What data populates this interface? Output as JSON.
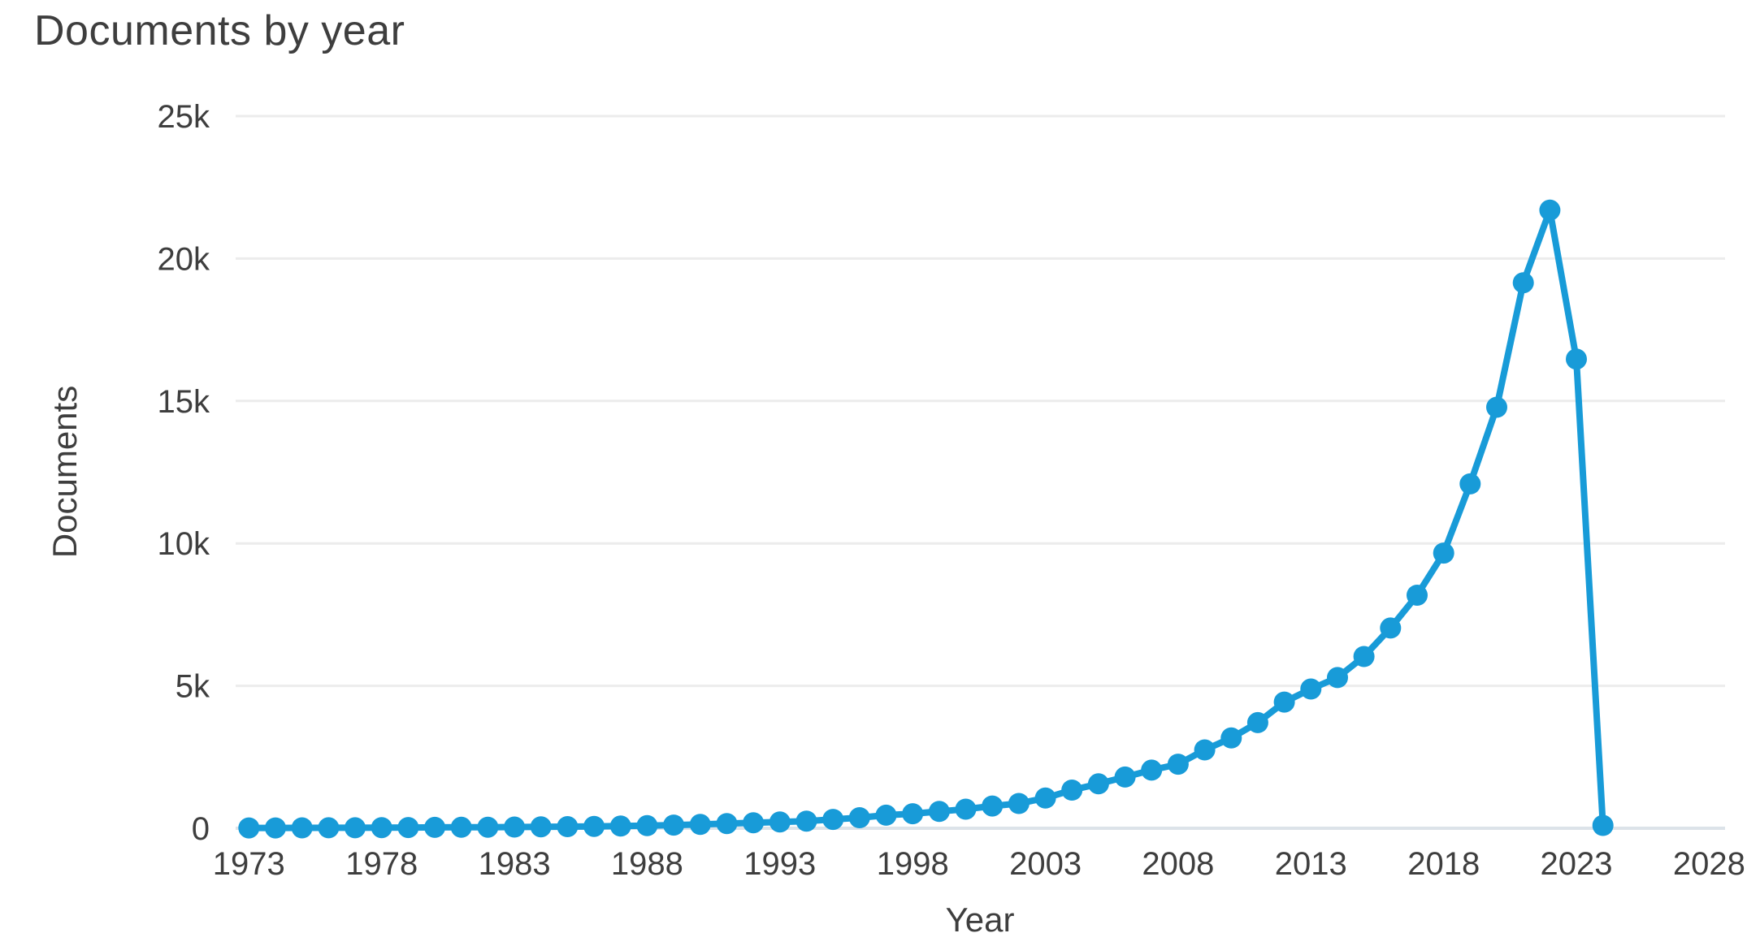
{
  "page": {
    "background": "#ffffff"
  },
  "chart_data": {
    "type": "line",
    "title": "Documents by year",
    "xlabel": "Year",
    "ylabel": "Documents",
    "xlim": [
      1972.5,
      2028.6
    ],
    "ylim": [
      0,
      25000
    ],
    "grid": "horizontal",
    "legend": "none",
    "x_ticks": {
      "values": [
        1973,
        1978,
        1983,
        1988,
        1993,
        1998,
        2003,
        2008,
        2013,
        2018,
        2023,
        2028
      ],
      "labels": [
        "1973",
        "1978",
        "1983",
        "1988",
        "1993",
        "1998",
        "2003",
        "2008",
        "2013",
        "2018",
        "2023",
        "2028"
      ]
    },
    "y_ticks": {
      "values": [
        0,
        5000,
        10000,
        15000,
        20000,
        25000
      ],
      "labels": [
        "0",
        "5k",
        "10k",
        "15k",
        "20k",
        "25k"
      ]
    },
    "series": [
      {
        "name": "Documents",
        "color": "#189bd8",
        "x": [
          1973,
          1974,
          1975,
          1976,
          1977,
          1978,
          1979,
          1980,
          1981,
          1982,
          1983,
          1984,
          1985,
          1986,
          1987,
          1988,
          1989,
          1990,
          1991,
          1992,
          1993,
          1994,
          1995,
          1996,
          1997,
          1998,
          1999,
          2000,
          2001,
          2002,
          2003,
          2004,
          2005,
          2006,
          2007,
          2008,
          2009,
          2010,
          2011,
          2012,
          2013,
          2014,
          2015,
          2016,
          2017,
          2018,
          2019,
          2020,
          2021,
          2022,
          2023,
          2024
        ],
        "values": [
          10,
          12,
          14,
          16,
          18,
          22,
          25,
          30,
          34,
          38,
          44,
          50,
          58,
          66,
          76,
          90,
          110,
          135,
          165,
          195,
          220,
          250,
          310,
          370,
          460,
          510,
          590,
          670,
          780,
          870,
          1060,
          1340,
          1560,
          1800,
          2040,
          2250,
          2750,
          3170,
          3710,
          4430,
          4890,
          5290,
          6030,
          7030,
          8180,
          9660,
          12090,
          14780,
          19150,
          21700,
          16470,
          100
        ]
      }
    ],
    "colors": {
      "line": "#189bd8",
      "gridline": "#ececec",
      "axis_line": "#dce3e9",
      "text": "#3e3e3e"
    }
  }
}
